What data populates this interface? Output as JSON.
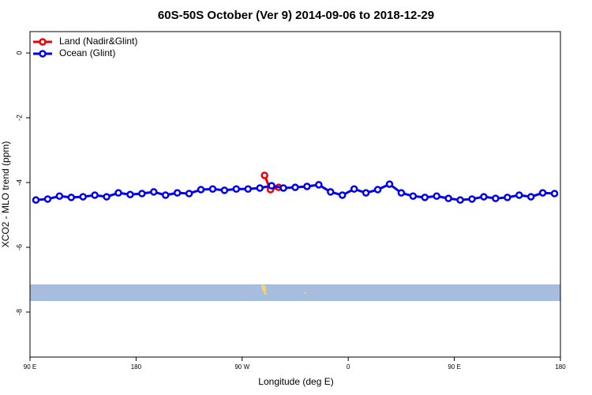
{
  "chart_data": {
    "type": "line",
    "title": "60S-50S October (Ver 9)   2014-09-06 to 2018-12-29",
    "x_label": "Longitude (deg E)",
    "y_label": "XCO2 - MLO trend (ppm)",
    "xlim": [
      90,
      540
    ],
    "xticks": [
      {
        "value": 90,
        "label": "90 E"
      },
      180,
      {
        "value": 270,
        "label": "90 W"
      },
      {
        "value": 360,
        "label": "0"
      },
      {
        "value": 450,
        "label": "90 E"
      },
      {
        "value": 540,
        "label": "180"
      }
    ],
    "ylim": [
      -9.39,
      0.66
    ],
    "yticks": [
      0,
      -2,
      -4,
      -6,
      -8
    ],
    "legend": "top-left",
    "series": [
      {
        "name": "Land (Nadir&Glint)",
        "color": "#ee0000",
        "x": [
          289,
          294,
          301
        ],
        "values": [
          -3.78,
          -4.22,
          -4.15
        ]
      },
      {
        "name": "Ocean (Glint)",
        "color": "#0000ee",
        "x": [
          95,
          105,
          115,
          125,
          135,
          145,
          155,
          165,
          175,
          185,
          195,
          205,
          215,
          225,
          235,
          245,
          255,
          265,
          275,
          285,
          295,
          305,
          315,
          325,
          335,
          345,
          355,
          365,
          375,
          385,
          395,
          405,
          415,
          425,
          435,
          445,
          455,
          465,
          475,
          485,
          495,
          505,
          515,
          525,
          535
        ],
        "values": [
          -4.54,
          -4.51,
          -4.42,
          -4.46,
          -4.44,
          -4.39,
          -4.44,
          -4.32,
          -4.37,
          -4.34,
          -4.29,
          -4.39,
          -4.32,
          -4.34,
          -4.22,
          -4.2,
          -4.24,
          -4.2,
          -4.2,
          -4.17,
          -4.1,
          -4.17,
          -4.15,
          -4.12,
          -4.07,
          -4.29,
          -4.39,
          -4.2,
          -4.32,
          -4.22,
          -4.05,
          -4.32,
          -4.42,
          -4.46,
          -4.42,
          -4.49,
          -4.54,
          -4.51,
          -4.44,
          -4.49,
          -4.46,
          -4.39,
          -4.44,
          -4.32,
          -4.34
        ]
      }
    ]
  }
}
